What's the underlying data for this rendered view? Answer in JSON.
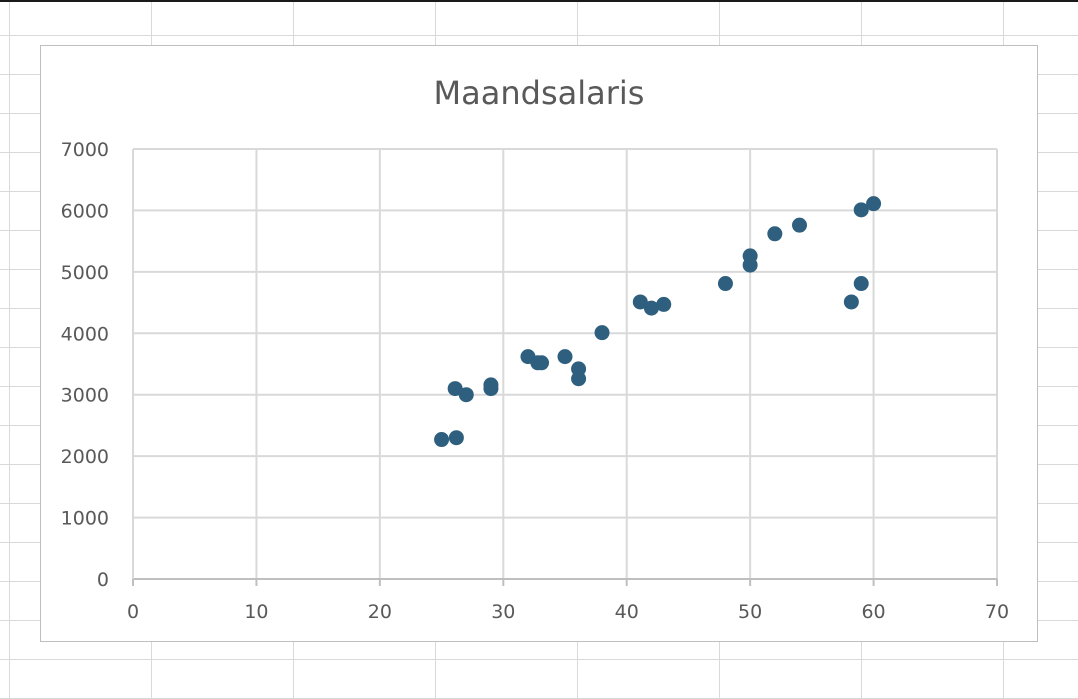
{
  "chart_data": {
    "type": "scatter",
    "title": "Maandsalaris",
    "xlabel": "",
    "ylabel": "",
    "xlim": [
      0,
      70
    ],
    "ylim": [
      0,
      7000
    ],
    "x_ticks": [
      0,
      10,
      20,
      30,
      40,
      50,
      60,
      70
    ],
    "y_ticks": [
      0,
      1000,
      2000,
      3000,
      4000,
      5000,
      6000,
      7000
    ],
    "x_tick_labels": [
      "0",
      "10",
      "20",
      "30",
      "40",
      "50",
      "60",
      "70"
    ],
    "y_tick_labels": [
      "0",
      "1000",
      "2000",
      "3000",
      "4000",
      "5000",
      "6000",
      "7000"
    ],
    "grid": true,
    "legend": "none",
    "marker_color": "#2e5f7e",
    "points": [
      {
        "x": 25,
        "y": 2270
      },
      {
        "x": 26.1,
        "y": 3100
      },
      {
        "x": 26.2,
        "y": 2300
      },
      {
        "x": 27,
        "y": 3000
      },
      {
        "x": 29,
        "y": 3100
      },
      {
        "x": 29,
        "y": 3160
      },
      {
        "x": 32,
        "y": 3620
      },
      {
        "x": 32.8,
        "y": 3520
      },
      {
        "x": 33.1,
        "y": 3520
      },
      {
        "x": 35,
        "y": 3620
      },
      {
        "x": 36.1,
        "y": 3260
      },
      {
        "x": 36.1,
        "y": 3420
      },
      {
        "x": 38,
        "y": 4010
      },
      {
        "x": 41.1,
        "y": 4510
      },
      {
        "x": 42,
        "y": 4410
      },
      {
        "x": 43,
        "y": 4470
      },
      {
        "x": 48,
        "y": 4810
      },
      {
        "x": 50,
        "y": 5110
      },
      {
        "x": 50,
        "y": 5260
      },
      {
        "x": 52,
        "y": 5620
      },
      {
        "x": 54,
        "y": 5760
      },
      {
        "x": 58.2,
        "y": 4510
      },
      {
        "x": 59,
        "y": 4810
      },
      {
        "x": 59,
        "y": 6010
      },
      {
        "x": 60,
        "y": 6110
      }
    ]
  }
}
